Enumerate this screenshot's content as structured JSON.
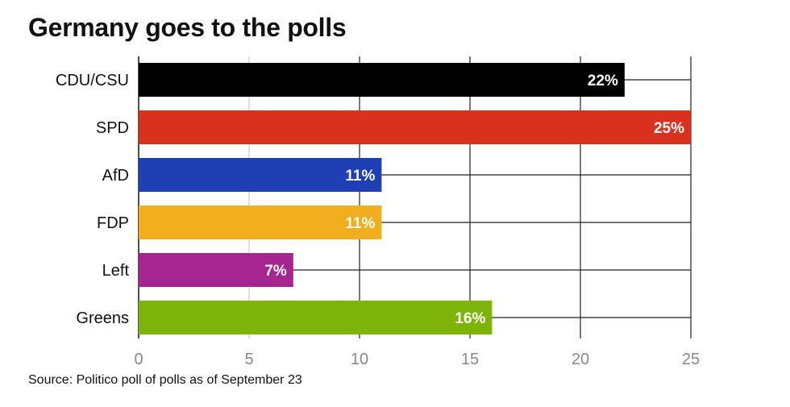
{
  "chart_data": {
    "type": "bar",
    "orientation": "horizontal",
    "title": "Germany goes to the polls",
    "source": "Source: Politico poll of polls as of September 23",
    "categories": [
      "CDU/CSU",
      "SPD",
      "AfD",
      "FDP",
      "Left",
      "Greens"
    ],
    "values": [
      22,
      25,
      11,
      11,
      7,
      16
    ],
    "value_labels": [
      "22%",
      "25%",
      "11%",
      "11%",
      "7%",
      "16%"
    ],
    "colors": [
      "#000000",
      "#d8321f",
      "#1f3fb5",
      "#f0ae1e",
      "#a6248f",
      "#7cb408"
    ],
    "xlim": [
      0,
      25
    ],
    "xticks": [
      0,
      5,
      10,
      15,
      20,
      25
    ],
    "grid": true,
    "xlabel": "",
    "ylabel": ""
  }
}
